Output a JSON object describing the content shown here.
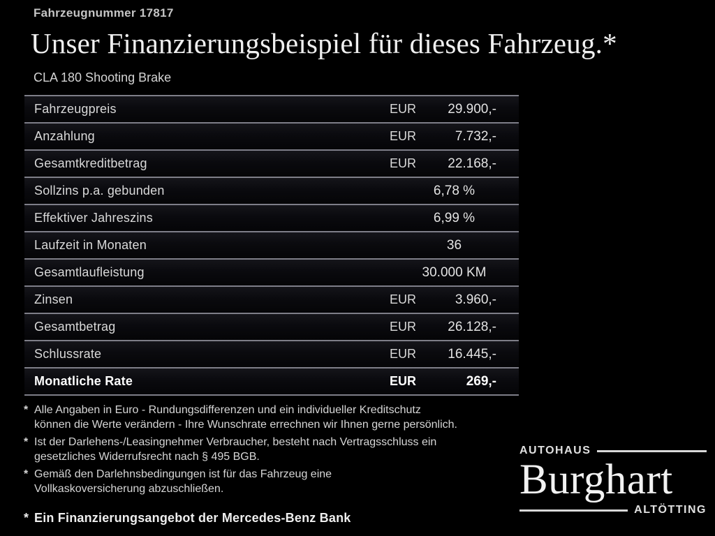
{
  "header": {
    "vehicle_number": "Fahrzeugnummer 17817",
    "title": "Unser Finanzierungsbeispiel für dieses Fahrzeug.*",
    "model": "CLA 180 Shooting Brake"
  },
  "table": {
    "rows": [
      {
        "label": "Fahrzeugpreis",
        "currency": "EUR",
        "value": "29.900,-"
      },
      {
        "label": "Anzahlung",
        "currency": "EUR",
        "value": "7.732,-"
      },
      {
        "label": "Gesamtkreditbetrag",
        "currency": "EUR",
        "value": "22.168,-"
      },
      {
        "label": "Sollzins p.a. gebunden",
        "currency": "",
        "value": "6,78 %"
      },
      {
        "label": "Effektiver Jahreszins",
        "currency": "",
        "value": "6,99 %"
      },
      {
        "label": "Laufzeit in Monaten",
        "currency": "",
        "value": "36"
      },
      {
        "label": "Gesamtlaufleistung",
        "currency": "",
        "value": "30.000 KM"
      },
      {
        "label": "Zinsen",
        "currency": "EUR",
        "value": "3.960,-"
      },
      {
        "label": "Gesamtbetrag",
        "currency": "EUR",
        "value": "26.128,-"
      },
      {
        "label": "Schlussrate",
        "currency": "EUR",
        "value": "16.445,-"
      },
      {
        "label": "Monatliche Rate",
        "currency": "EUR",
        "value": "269,-"
      }
    ]
  },
  "footnotes": {
    "marker": "*",
    "items": [
      {
        "lines": [
          "Alle Angaben in Euro - Rundungsdifferenzen und ein individueller Kreditschutz",
          "können die Werte verändern - Ihre Wunschrate errechnen wir Ihnen gerne persönlich."
        ]
      },
      {
        "lines": [
          "Ist der Darlehens-/Leasingnehmer Verbraucher, besteht nach Vertragsschluss ein",
          "gesetzliches Widerrufsrecht nach § 495 BGB."
        ]
      },
      {
        "lines": [
          "Gemäß den Darlehnsbedingungen ist für das Fahrzeug eine",
          "Vollkaskoversicherung abzuschließen."
        ]
      }
    ],
    "financing_note": "Ein Finanzierungsangebot der Mercedes-Benz Bank"
  },
  "dealer_logo": {
    "top_label": "AUTOHAUS",
    "name": "Burghart",
    "bottom_label": "ALTÖTTING"
  },
  "colors": {
    "background": "#000000",
    "separator": "#7e7e88",
    "text": "#dcdcdc",
    "emphasis_text": "#ffffff"
  }
}
